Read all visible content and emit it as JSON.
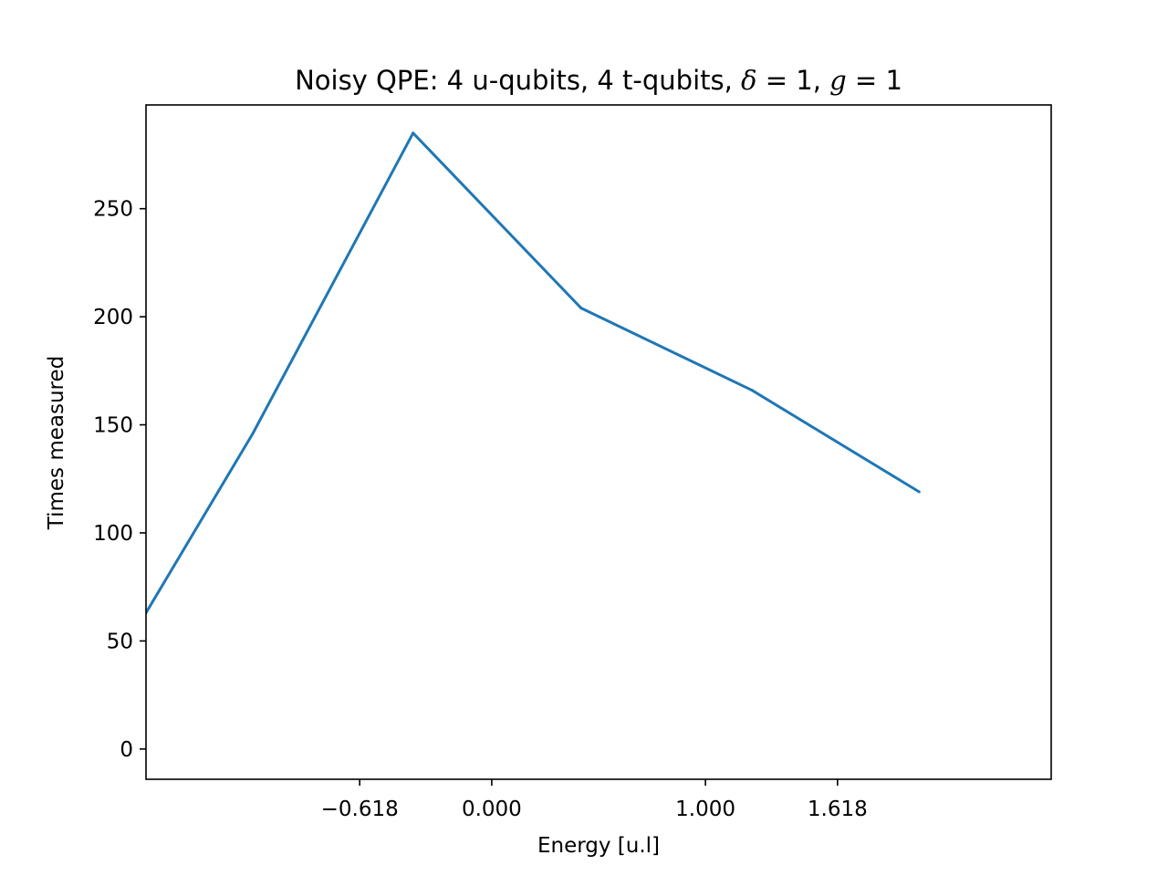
{
  "chart_data": {
    "type": "line",
    "title": {
      "prefix": "Noisy QPE: 4 u-qubits, 4 t-qubits, ",
      "delta_symbol": "δ",
      "delta_value": " = 1, ",
      "g_symbol": "g",
      "g_value": " = 1"
    },
    "xlabel": "Energy [u.l]",
    "ylabel": "Times measured",
    "xlim": [
      -1.618,
      2.618
    ],
    "ylim": [
      -14,
      298
    ],
    "x_ticks": [
      {
        "value": -0.618,
        "label": "−0.618"
      },
      {
        "value": 0.0,
        "label": "0.000"
      },
      {
        "value": 1.0,
        "label": "1.000"
      },
      {
        "value": 1.618,
        "label": "1.618"
      }
    ],
    "y_ticks": [
      {
        "value": 0,
        "label": "0"
      },
      {
        "value": 50,
        "label": "50"
      },
      {
        "value": 100,
        "label": "100"
      },
      {
        "value": 150,
        "label": "150"
      },
      {
        "value": 200,
        "label": "200"
      },
      {
        "value": 250,
        "label": "250"
      }
    ],
    "grid": false,
    "series": [
      {
        "color": "#1f77b4",
        "points": [
          {
            "x": -1.618,
            "y": 63
          },
          {
            "x": -1.118,
            "y": 146
          },
          {
            "x": -0.368,
            "y": 285
          },
          {
            "x": 0.418,
            "y": 204
          },
          {
            "x": 1.218,
            "y": 166
          },
          {
            "x": 2.0,
            "y": 119
          }
        ]
      }
    ]
  }
}
